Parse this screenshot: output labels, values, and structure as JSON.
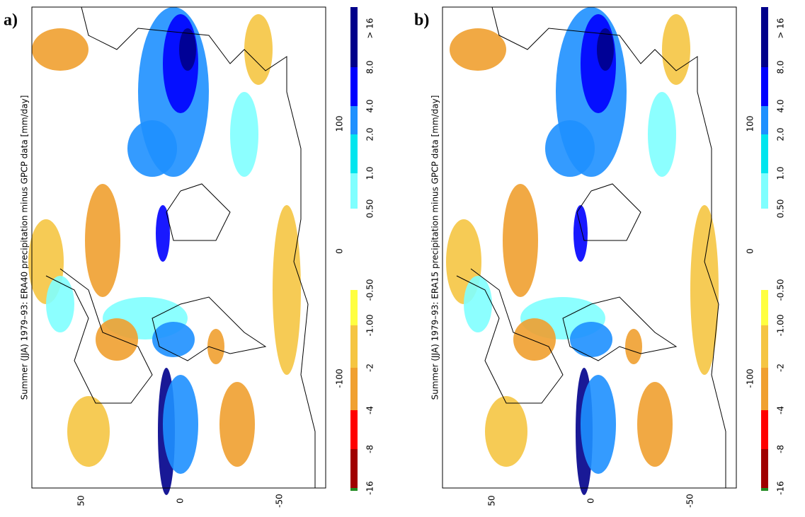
{
  "panels": [
    {
      "label": "a)",
      "title": "Summer (JJA) 1979–93: ERA40 precipitation minus GPCP data [mm/day]",
      "lon_ticks": [
        "100",
        "0",
        "-100"
      ],
      "lat_ticks": [
        "50",
        "0",
        "-50"
      ],
      "colorbar_labels": [
        "> 16",
        "8.0",
        "4.0",
        "2.0",
        "1.0",
        "0.50",
        "-0.50",
        "-1.00",
        "-2",
        "-4",
        "-8",
        "-16"
      ]
    },
    {
      "label": "b)",
      "title": "Summer (JJA) 1979–93: ERA15 precipitation minus GPCP data [mm/day]",
      "lon_ticks": [
        "100",
        "0",
        "-100"
      ],
      "lat_ticks": [
        "50",
        "0",
        "-50"
      ],
      "colorbar_labels": [
        "> 16",
        "8.0",
        "4.0",
        "2.0",
        "1.0",
        "0.50",
        "-0.50",
        "-1.00",
        "-2",
        "-4",
        "-8",
        "-16"
      ]
    }
  ]
}
